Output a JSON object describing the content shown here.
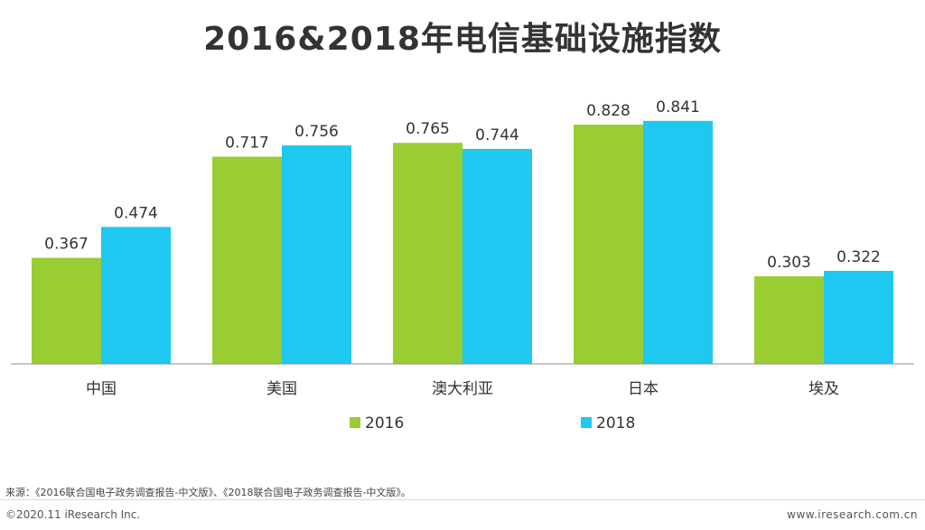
{
  "page": {
    "title": "2016&2018年电信基础设施指数",
    "source": "来源：《2016联合国电子政务调查报告-中文版》、《2018联合国电子政务调查报告-中文版》。",
    "copyright": "©2020.11 iResearch Inc.",
    "website": "www.iresearch.com.cn"
  },
  "colors": {
    "series_2016": "#9acd32",
    "series_2018": "#1ec8f0",
    "text": "#333333",
    "axis": "#8c8c8c"
  },
  "chart_data": {
    "type": "bar",
    "title": "2016&2018年电信基础设施指数",
    "categories": [
      "中国",
      "美国",
      "澳大利亚",
      "日本",
      "埃及"
    ],
    "series": [
      {
        "name": "2016",
        "values": [
          0.367,
          0.717,
          0.765,
          0.828,
          0.303
        ]
      },
      {
        "name": "2018",
        "values": [
          0.474,
          0.756,
          0.744,
          0.841,
          0.322
        ]
      }
    ],
    "ylim": [
      0,
      1
    ],
    "grid": false,
    "legend": "bottom-center",
    "data_labels": true
  }
}
